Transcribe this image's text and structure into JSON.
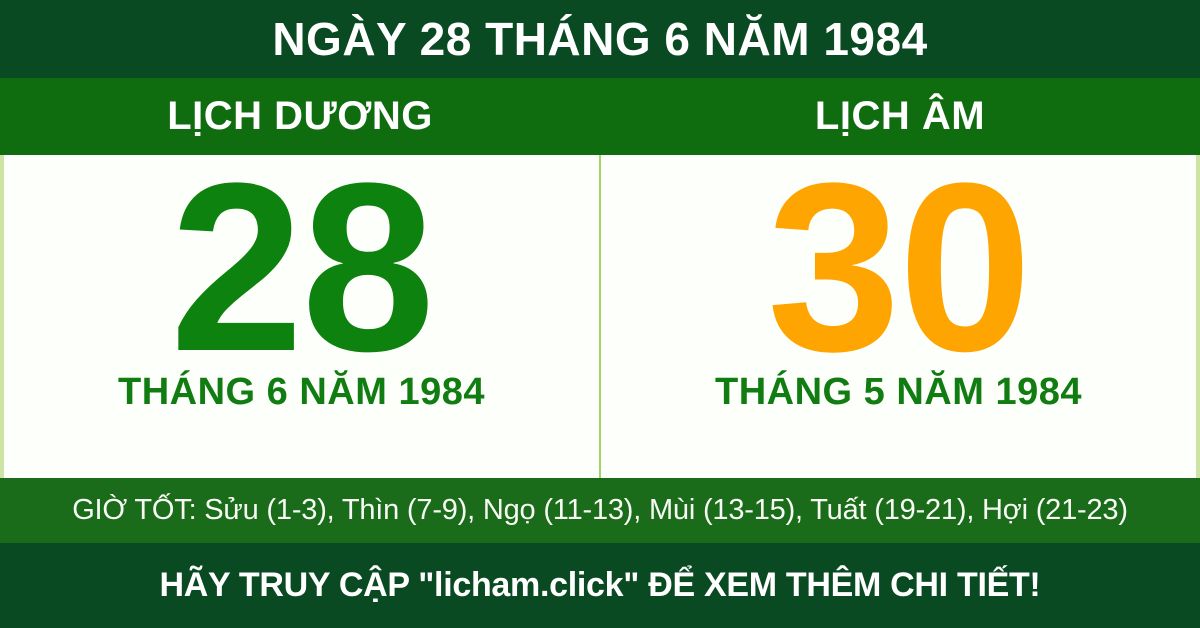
{
  "header": {
    "title": "NGÀY 28 THÁNG 6 NĂM 1984"
  },
  "solar": {
    "label": "LỊCH DƯƠNG",
    "day": "28",
    "month_year": "THÁNG 6 NĂM 1984"
  },
  "lunar": {
    "label": "LỊCH ÂM",
    "day": "30",
    "month_year": "THÁNG 5 NĂM 1984"
  },
  "good_hours": {
    "text": "GIỜ TỐT: Sửu (1-3), Thìn (7-9), Ngọ (11-13), Mùi (13-15), Tuất (19-21), Hợi (21-23)"
  },
  "footer": {
    "text": "HÃY TRUY CẬP \"licham.click\" ĐỂ XEM THÊM CHI TIẾT!"
  },
  "colors": {
    "header_bg": "#0a4a23",
    "band_bg": "#0f6c0f",
    "good_hours_bg": "#1a6b1a",
    "footer_bg": "#0a4a23",
    "panel_bg": "#fdfffa",
    "solar_day": "#0e820e",
    "lunar_day": "#ffa502",
    "month_text": "#117c11",
    "divider": "#a4d369",
    "edge": "#cde4a4"
  }
}
